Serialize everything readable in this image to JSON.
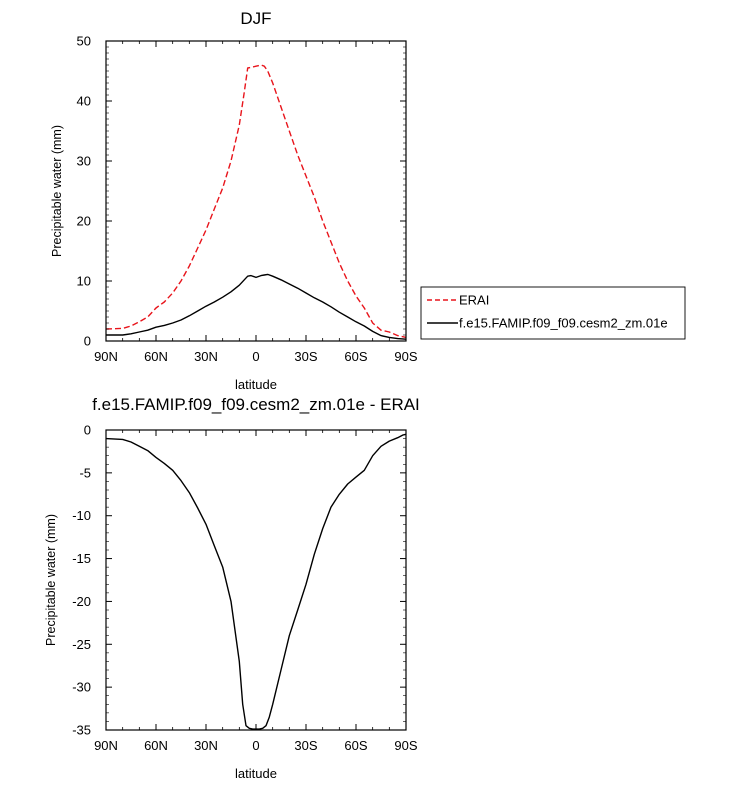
{
  "chart_data": [
    {
      "type": "line",
      "title": "DJF",
      "xlabel": "latitude",
      "ylabel": "Precipitable water (mm)",
      "xlim": [
        90,
        -90
      ],
      "ylim": [
        0,
        50
      ],
      "x_ticks": [
        {
          "value": 90,
          "label": "90N"
        },
        {
          "value": 60,
          "label": "60N"
        },
        {
          "value": 30,
          "label": "30N"
        },
        {
          "value": 0,
          "label": "0"
        },
        {
          "value": -30,
          "label": "30S"
        },
        {
          "value": -60,
          "label": "60S"
        },
        {
          "value": -90,
          "label": "90S"
        }
      ],
      "y_ticks": [
        {
          "value": 0,
          "label": "0"
        },
        {
          "value": 10,
          "label": "10"
        },
        {
          "value": 20,
          "label": "20"
        },
        {
          "value": 30,
          "label": "30"
        },
        {
          "value": 40,
          "label": "40"
        },
        {
          "value": 50,
          "label": "50"
        }
      ],
      "legend_position": "right",
      "series": [
        {
          "name": "ERAI",
          "color": "#e8141b",
          "dash": "dashed",
          "x": [
            90,
            80,
            75,
            70,
            65,
            60,
            55,
            50,
            45,
            40,
            35,
            30,
            25,
            20,
            15,
            10,
            7,
            5,
            3,
            0,
            -3,
            -5,
            -7,
            -10,
            -15,
            -20,
            -25,
            -30,
            -35,
            -40,
            -45,
            -50,
            -55,
            -60,
            -65,
            -70,
            -75,
            -80,
            -85,
            -90
          ],
          "y": [
            2.0,
            2.1,
            2.5,
            3.2,
            4.0,
            5.5,
            6.5,
            8.0,
            10.0,
            12.5,
            15.5,
            18.5,
            22.0,
            25.5,
            30.0,
            36.0,
            41.5,
            45.5,
            45.6,
            45.8,
            46.0,
            45.8,
            45.0,
            43.0,
            39.0,
            35.0,
            31.0,
            27.5,
            24.0,
            20.0,
            16.5,
            13.0,
            10.0,
            7.5,
            5.5,
            3.0,
            1.8,
            1.5,
            0.9,
            0.6
          ]
        },
        {
          "name": "f.e15.FAMIP.f09_f09.cesm2_zm.01e",
          "color": "#000000",
          "dash": "solid",
          "x": [
            90,
            80,
            75,
            70,
            65,
            60,
            55,
            50,
            45,
            40,
            35,
            30,
            25,
            20,
            15,
            10,
            7,
            5,
            3,
            0,
            -3,
            -5,
            -7,
            -10,
            -15,
            -20,
            -25,
            -30,
            -35,
            -40,
            -45,
            -50,
            -55,
            -60,
            -65,
            -70,
            -75,
            -80,
            -85,
            -90
          ],
          "y": [
            1.0,
            1.0,
            1.2,
            1.5,
            1.8,
            2.3,
            2.6,
            3.0,
            3.5,
            4.2,
            5.0,
            5.8,
            6.5,
            7.3,
            8.2,
            9.3,
            10.2,
            10.8,
            10.9,
            10.6,
            10.9,
            11.0,
            11.1,
            10.8,
            10.2,
            9.5,
            8.8,
            8.0,
            7.2,
            6.5,
            5.7,
            4.8,
            4.0,
            3.2,
            2.5,
            1.6,
            0.9,
            0.6,
            0.4,
            0.3
          ]
        }
      ]
    },
    {
      "type": "line",
      "title": "f.e15.FAMIP.f09_f09.cesm2_zm.01e - ERAI",
      "xlabel": "latitude",
      "ylabel": "Precipitable water (mm)",
      "xlim": [
        90,
        -90
      ],
      "ylim": [
        -35,
        0
      ],
      "x_ticks": [
        {
          "value": 90,
          "label": "90N"
        },
        {
          "value": 60,
          "label": "60N"
        },
        {
          "value": 30,
          "label": "30N"
        },
        {
          "value": 0,
          "label": "0"
        },
        {
          "value": -30,
          "label": "30S"
        },
        {
          "value": -60,
          "label": "60S"
        },
        {
          "value": -90,
          "label": "90S"
        }
      ],
      "y_ticks": [
        {
          "value": 0,
          "label": "0"
        },
        {
          "value": -5,
          "label": "-5"
        },
        {
          "value": -10,
          "label": "-10"
        },
        {
          "value": -15,
          "label": "-15"
        },
        {
          "value": -20,
          "label": "-20"
        },
        {
          "value": -25,
          "label": "-25"
        },
        {
          "value": -30,
          "label": "-30"
        },
        {
          "value": -35,
          "label": "-35"
        }
      ],
      "series": [
        {
          "color": "#000000",
          "dash": "solid",
          "x": [
            90,
            80,
            75,
            70,
            65,
            60,
            55,
            50,
            45,
            40,
            35,
            30,
            25,
            20,
            15,
            10,
            8,
            6,
            4,
            2,
            0,
            -2,
            -4,
            -6,
            -8,
            -10,
            -15,
            -20,
            -25,
            -30,
            -35,
            -40,
            -45,
            -50,
            -55,
            -60,
            -65,
            -70,
            -75,
            -80,
            -85,
            -88,
            -90
          ],
          "y": [
            -1.0,
            -1.1,
            -1.4,
            -1.9,
            -2.4,
            -3.2,
            -3.9,
            -4.7,
            -5.9,
            -7.3,
            -9.1,
            -11.0,
            -13.5,
            -16.0,
            -20.0,
            -27.0,
            -32.0,
            -34.5,
            -34.8,
            -34.9,
            -34.9,
            -34.9,
            -34.8,
            -34.5,
            -33.5,
            -32.0,
            -28.0,
            -24.0,
            -21.0,
            -18.0,
            -14.5,
            -11.5,
            -9.0,
            -7.5,
            -6.3,
            -5.5,
            -4.7,
            -3.0,
            -1.9,
            -1.3,
            -0.9,
            -0.6,
            -0.5
          ]
        }
      ]
    }
  ]
}
